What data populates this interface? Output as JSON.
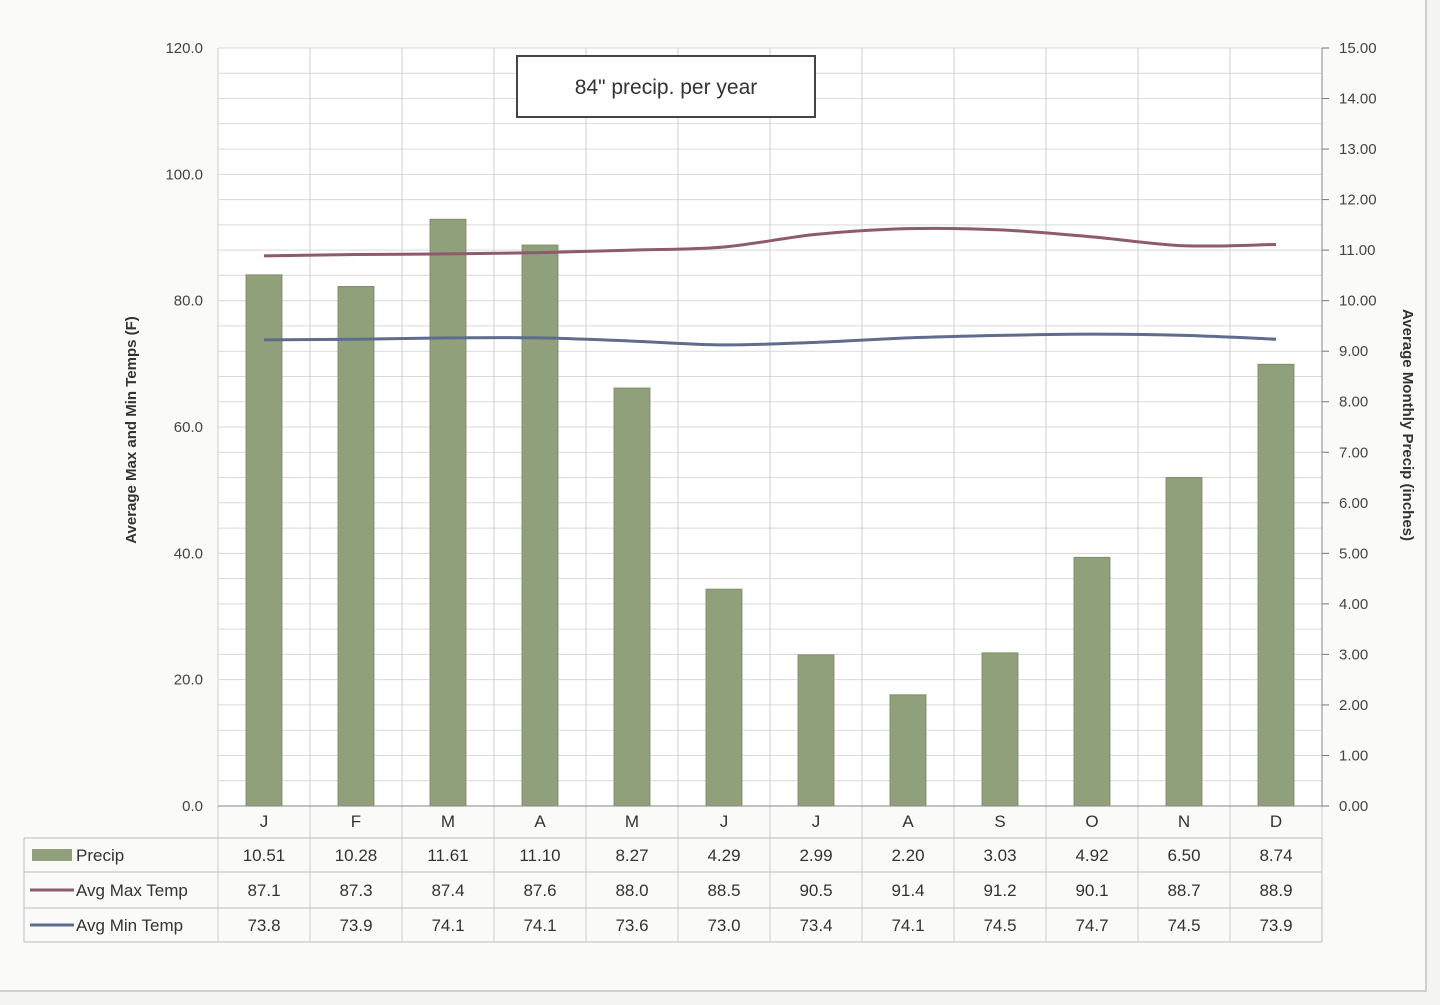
{
  "chart_data": {
    "type": "bar",
    "annotation": "84\" precip. per year",
    "categories": [
      "J",
      "F",
      "M",
      "A",
      "M",
      "J",
      "J",
      "A",
      "S",
      "O",
      "N",
      "D"
    ],
    "y_left": {
      "label": "Average Max and Min Temps (F)",
      "ylim": [
        0,
        120
      ],
      "ticks": [
        "0.0",
        "20.0",
        "40.0",
        "60.0",
        "80.0",
        "100.0",
        "120.0"
      ]
    },
    "y_right": {
      "label": "Average Monthly Precip (inches)",
      "ylim": [
        0,
        15
      ],
      "ticks": [
        "0.00",
        "1.00",
        "2.00",
        "3.00",
        "4.00",
        "5.00",
        "6.00",
        "7.00",
        "8.00",
        "9.00",
        "10.00",
        "11.00",
        "12.00",
        "13.00",
        "14.00",
        "15.00"
      ]
    },
    "grid": true,
    "series": [
      {
        "name": "Precip",
        "kind": "bar",
        "axis": "right",
        "color": "#8fa07a",
        "values": [
          10.51,
          10.28,
          11.61,
          11.1,
          8.27,
          4.29,
          2.99,
          2.2,
          3.03,
          4.92,
          6.5,
          8.74
        ],
        "labels": [
          "10.51",
          "10.28",
          "11.61",
          "11.10",
          "8.27",
          "4.29",
          "2.99",
          "2.20",
          "3.03",
          "4.92",
          "6.50",
          "8.74"
        ]
      },
      {
        "name": "Avg Max Temp",
        "kind": "line",
        "axis": "left",
        "color": "#8e5a6e",
        "values": [
          87.1,
          87.3,
          87.4,
          87.6,
          88.0,
          88.5,
          90.5,
          91.4,
          91.2,
          90.1,
          88.7,
          88.9
        ],
        "labels": [
          "87.1",
          "87.3",
          "87.4",
          "87.6",
          "88.0",
          "88.5",
          "90.5",
          "91.4",
          "91.2",
          "90.1",
          "88.7",
          "88.9"
        ]
      },
      {
        "name": "Avg Min Temp",
        "kind": "line",
        "axis": "left",
        "color": "#5f6c8e",
        "values": [
          73.8,
          73.9,
          74.1,
          74.1,
          73.6,
          73.0,
          73.4,
          74.1,
          74.5,
          74.7,
          74.5,
          73.9
        ],
        "labels": [
          "73.8",
          "73.9",
          "74.1",
          "74.1",
          "73.6",
          "73.0",
          "73.4",
          "74.1",
          "74.5",
          "74.7",
          "74.5",
          "73.9"
        ]
      }
    ]
  }
}
